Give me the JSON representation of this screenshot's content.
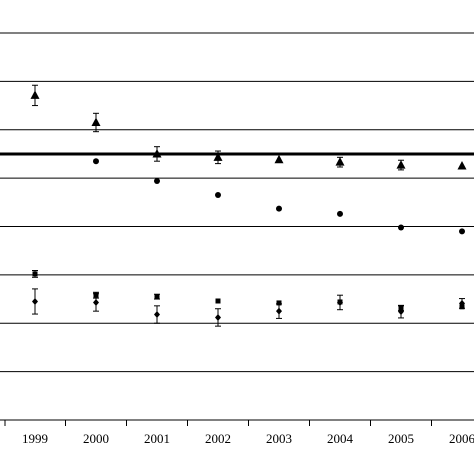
{
  "chart_data": {
    "type": "scatter",
    "title": "",
    "xlabel": "",
    "ylabel": "",
    "categories": [
      "1999",
      "2000",
      "2001",
      "2002",
      "2003",
      "2004",
      "2005",
      "2006"
    ],
    "ylim": [
      0,
      8
    ],
    "grid": true,
    "reference_line": 5.5,
    "series": [
      {
        "marker": "triangle",
        "values": [
          6.71,
          6.15,
          5.5,
          5.43,
          5.38,
          5.33,
          5.27,
          5.25
        ],
        "err": [
          0.21,
          0.19,
          0.15,
          0.13,
          0.0,
          0.1,
          0.1,
          0.0
        ]
      },
      {
        "marker": "circle",
        "values": [
          null,
          5.35,
          4.94,
          4.65,
          4.37,
          4.26,
          3.98,
          3.9
        ],
        "err": [
          0,
          0,
          0,
          0,
          0,
          0,
          0,
          0
        ]
      },
      {
        "marker": "square",
        "values": [
          3.02,
          2.58,
          2.55,
          2.46,
          2.42,
          2.44,
          2.31,
          2.34
        ],
        "err": [
          0.07,
          0.06,
          0.05,
          0.0,
          0.0,
          0.0,
          0.05,
          0.0
        ]
      },
      {
        "marker": "diamond",
        "values": [
          2.45,
          2.43,
          2.18,
          2.12,
          2.25,
          2.43,
          2.24,
          2.41
        ],
        "err": [
          0.26,
          0.18,
          0.18,
          0.18,
          0.15,
          0.15,
          0.13,
          0.1
        ]
      }
    ]
  }
}
